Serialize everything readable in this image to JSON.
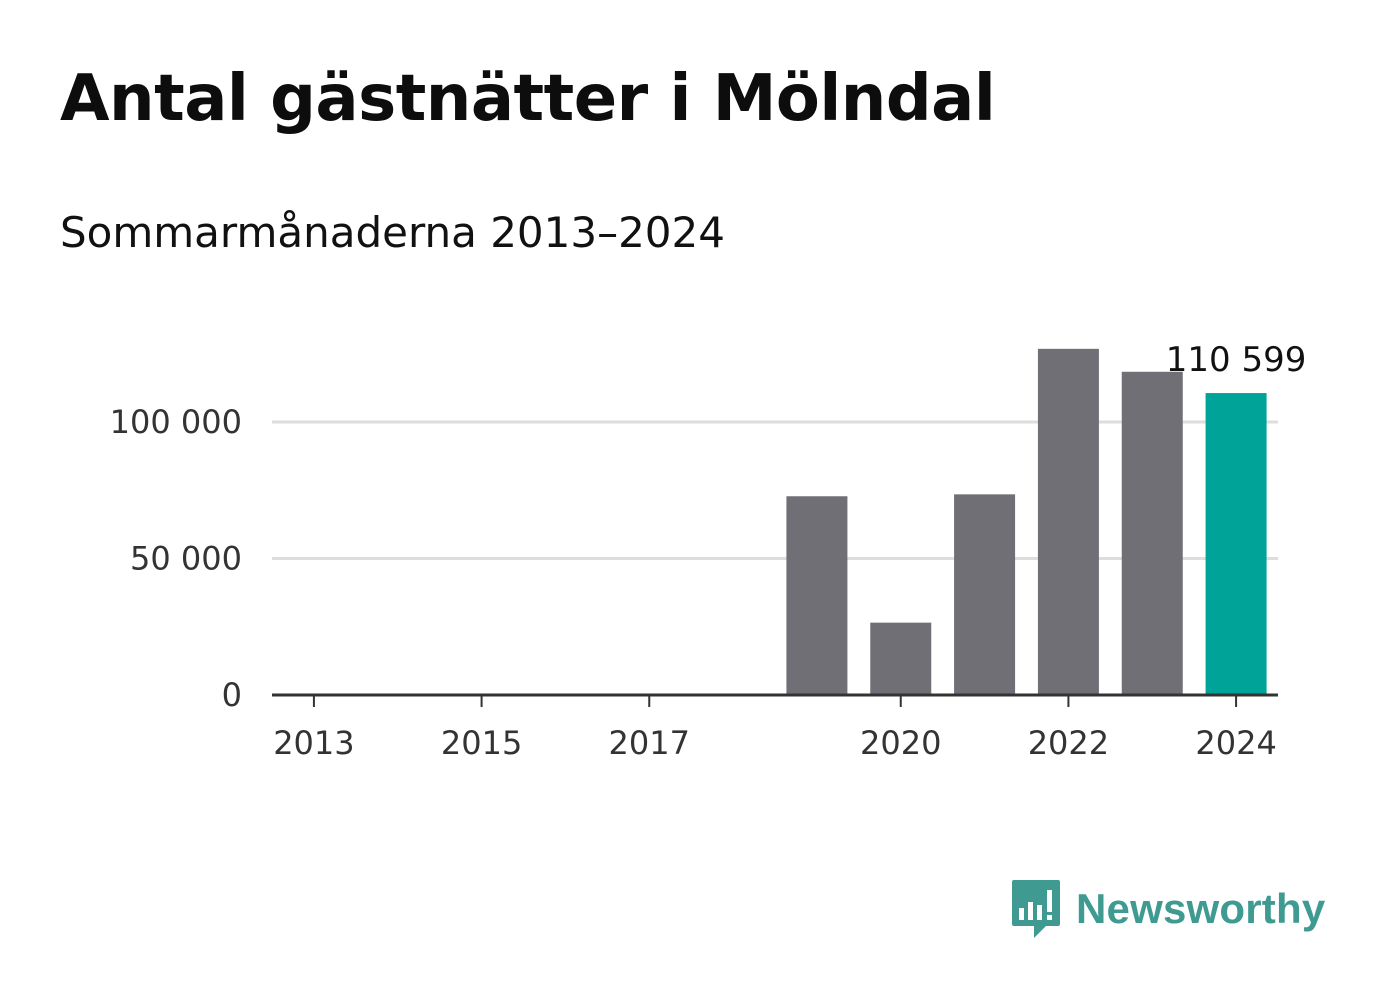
{
  "header": {
    "title": "Antal gästnätter i Mölndal",
    "subtitle": "Sommarmånaderna 2013–2024"
  },
  "chart_data": {
    "type": "bar",
    "categories": [
      "2013",
      "2014",
      "2015",
      "2016",
      "2017",
      "2018",
      "2019",
      "2020",
      "2021",
      "2022",
      "2023",
      "2024"
    ],
    "values": [
      null,
      null,
      null,
      null,
      null,
      null,
      72800,
      26500,
      73500,
      126800,
      118400,
      110599
    ],
    "x_tick_labels": [
      "2013",
      "2015",
      "2017",
      "2020",
      "2022",
      "2024"
    ],
    "y_ticks": [
      0,
      50000,
      100000
    ],
    "y_tick_labels": [
      "0",
      "50 000",
      "100 000"
    ],
    "ylim": [
      0,
      130000
    ],
    "grid": true,
    "highlight_category": "2024",
    "data_label": "110 599",
    "colors": {
      "bar": "#706f75",
      "highlight": "#00a398",
      "grid": "#dddddd",
      "axis": "#333333"
    }
  },
  "branding": {
    "name": "Newsworthy",
    "logo_icon": "newsworthy-bar-chart-speech-bubble-icon",
    "color": "#3f9a92"
  }
}
